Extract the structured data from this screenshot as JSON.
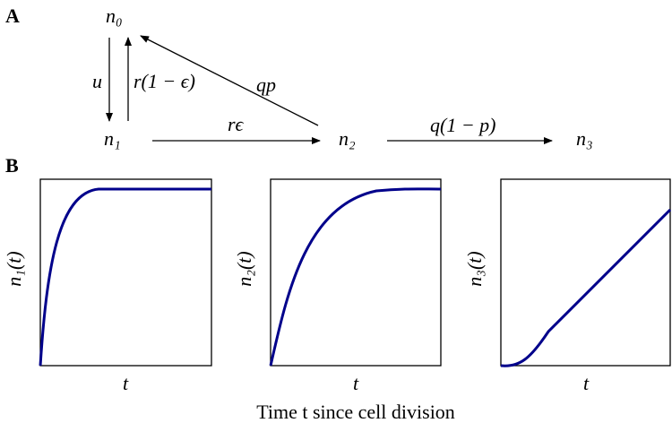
{
  "panels": {
    "a": "A",
    "b": "B"
  },
  "nodes": [
    "n₀",
    "n₁",
    "n₂",
    "n₃"
  ],
  "edges": {
    "n0_to_n1": "u",
    "n1_to_n0": "r(1 − ϵ)",
    "n2_to_n0": "qp",
    "n1_to_n2": "rϵ",
    "n2_to_n3": "q(1 − p)"
  },
  "plots": [
    {
      "ylabel": "n₁(t)",
      "xlabel": "t"
    },
    {
      "ylabel": "n₂(t)",
      "xlabel": "t"
    },
    {
      "ylabel": "n₃(t)",
      "xlabel": "t"
    }
  ],
  "xlabel": "Time t since cell division"
}
